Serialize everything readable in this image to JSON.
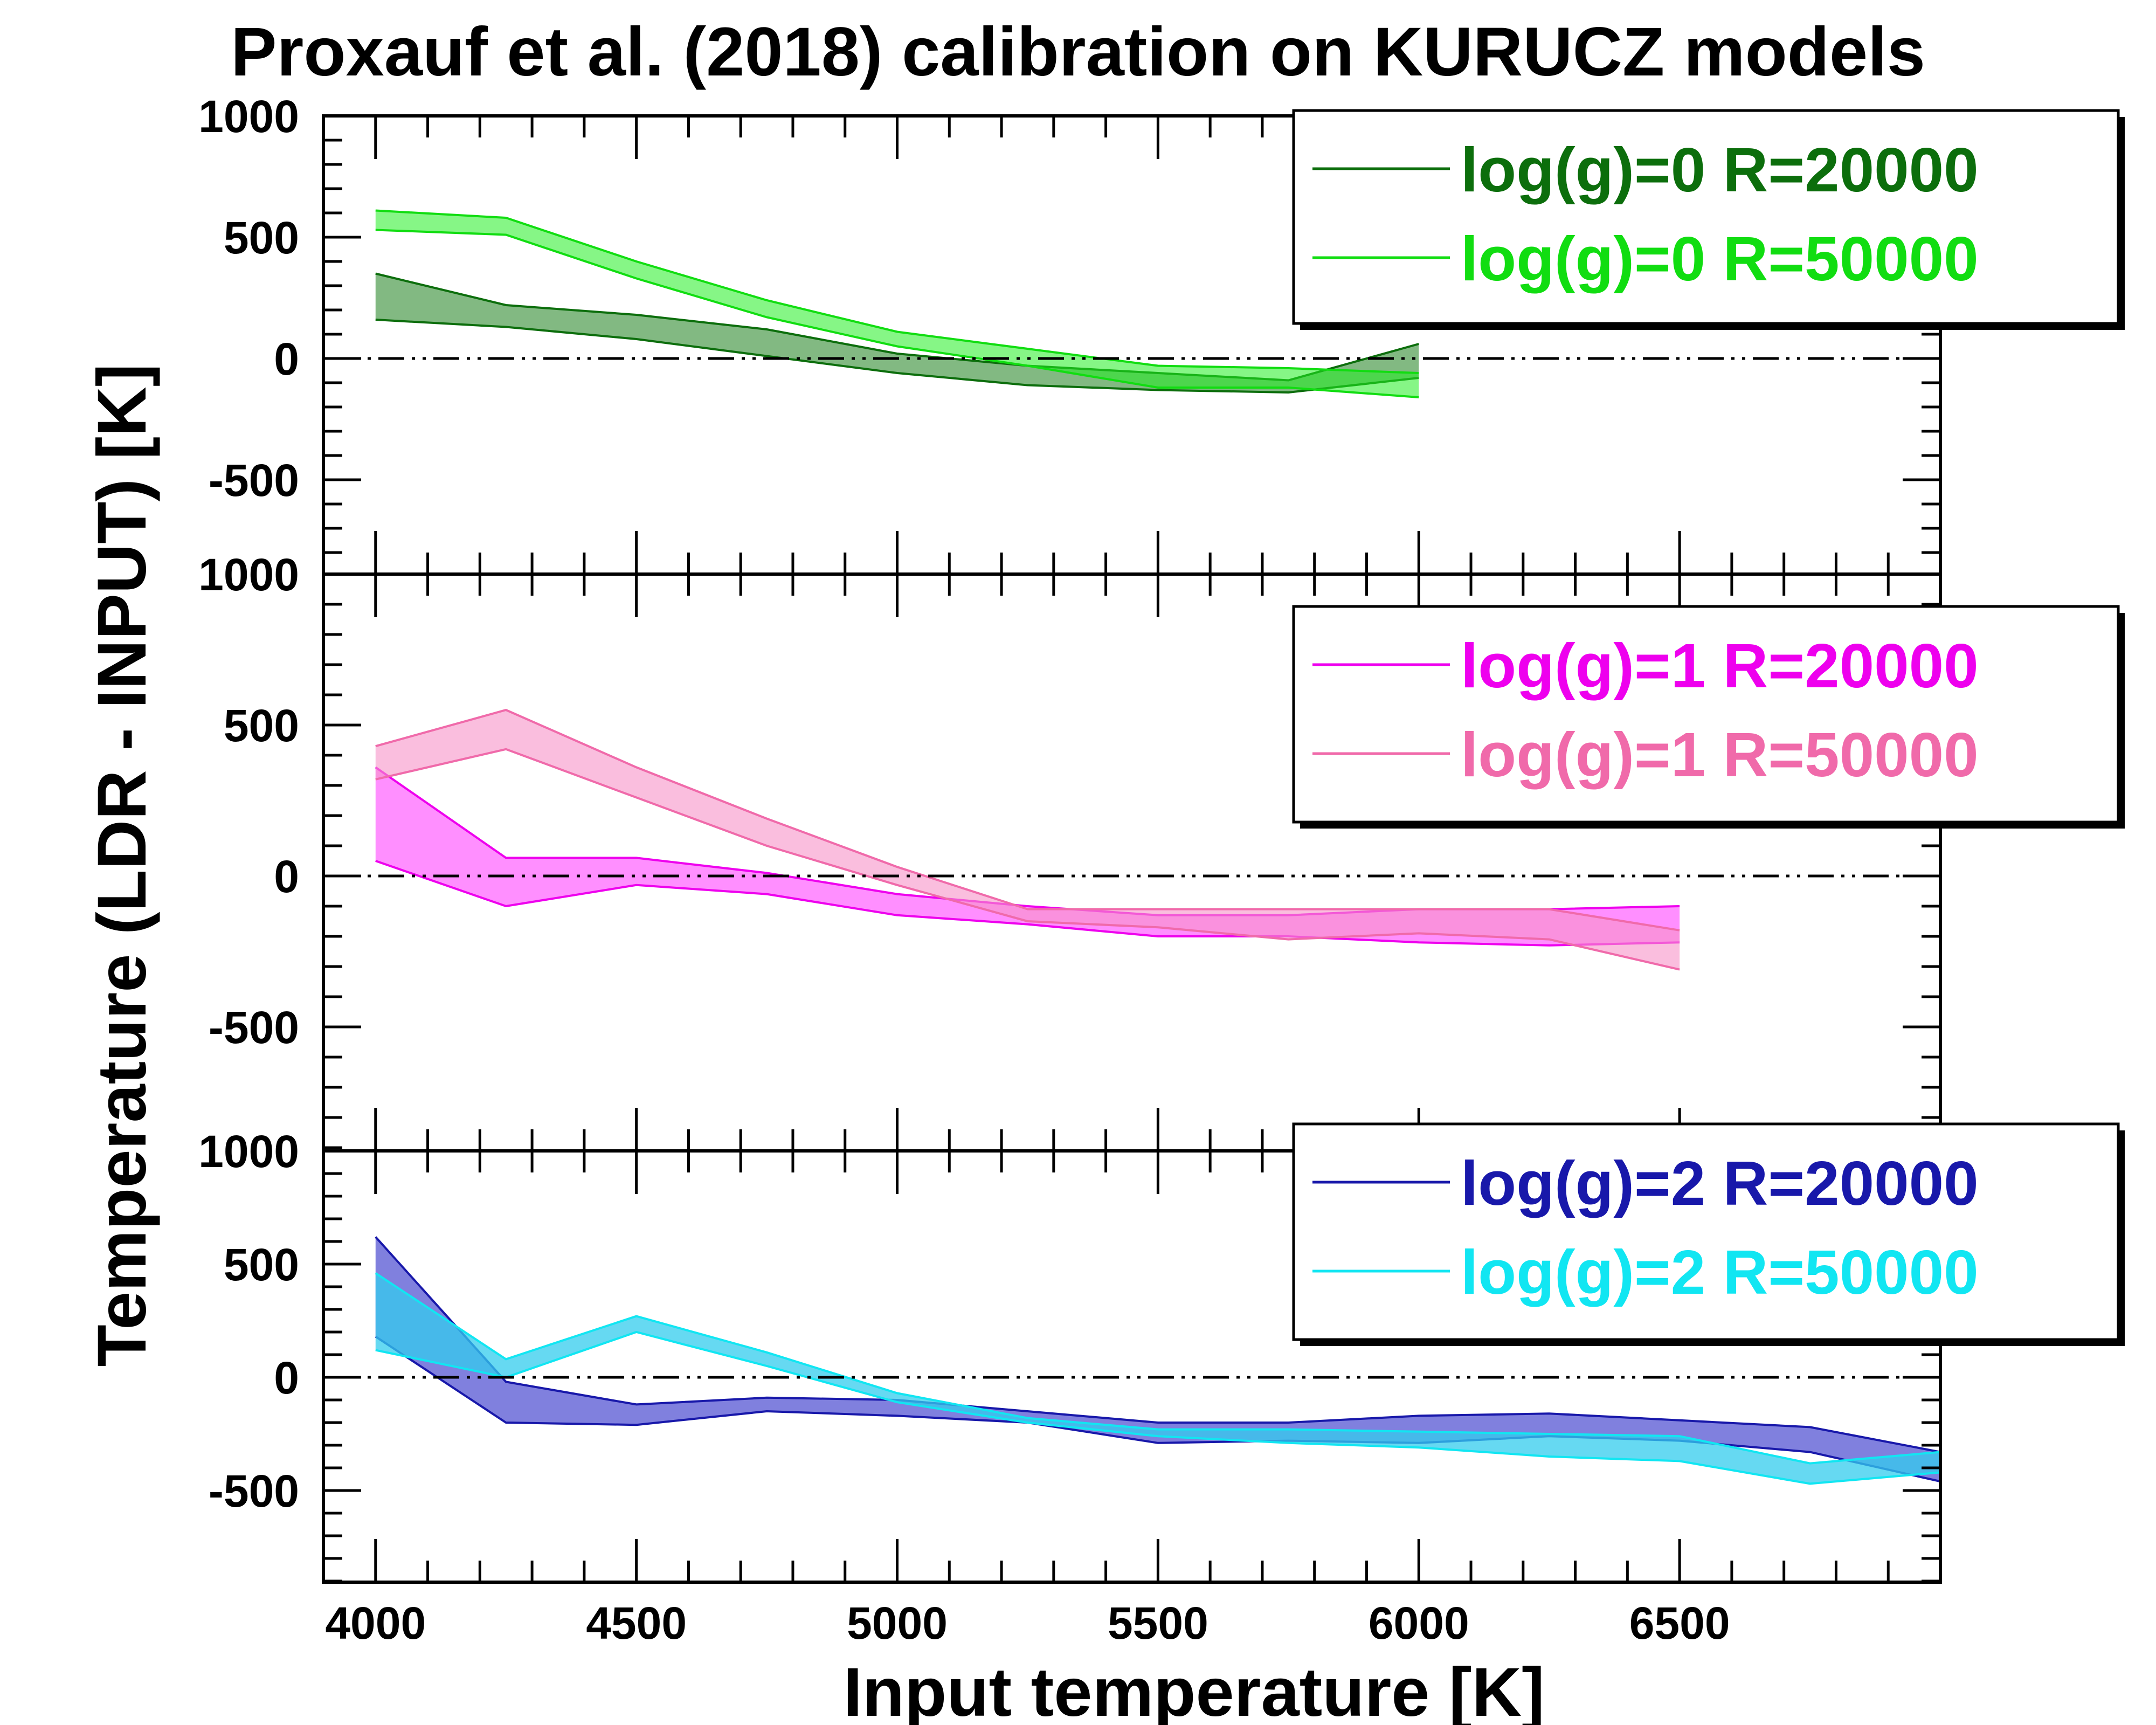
{
  "chart_data": {
    "type": "area",
    "title": "Proxauf et al. (2018) calibration on KURUCZ models",
    "xlabel": "Input temperature [K]",
    "ylabel": "Temperature (LDR - INPUT) [K]",
    "xlim": [
      3900,
      7000
    ],
    "x_ticks": [
      4000,
      4500,
      5000,
      5500,
      6000,
      6500
    ],
    "x_tick_labels": [
      "4000",
      "4500",
      "5000",
      "5500",
      "6000",
      "6500"
    ],
    "zero_line": "dash-dot",
    "panels": [
      {
        "id": "logg0",
        "ylim": [
          -900,
          1000
        ],
        "y_ticks": [
          1000,
          500,
          0,
          -500
        ],
        "y_tick_labels": [
          "1000",
          "500",
          "0",
          "-500"
        ],
        "legend": "top-right",
        "series": [
          {
            "name": "log(g)=0 R=20000",
            "line_color": "#0c6e0c",
            "fill_color": "#2e8a2e",
            "fill_opacity": 0.6,
            "x": [
              4000,
              4250,
              4500,
              4750,
              5000,
              5250,
              5500,
              5750,
              6000
            ],
            "upper": [
              350,
              220,
              180,
              120,
              20,
              -30,
              -60,
              -90,
              60
            ],
            "lower": [
              160,
              130,
              80,
              10,
              -60,
              -110,
              -130,
              -140,
              -80
            ]
          },
          {
            "name": "log(g)=0 R=50000",
            "line_color": "#11dd11",
            "fill_color": "#22ee22",
            "fill_opacity": 0.55,
            "x": [
              4000,
              4250,
              4500,
              4750,
              5000,
              5250,
              5500,
              5750,
              6000
            ],
            "upper": [
              610,
              580,
              400,
              240,
              110,
              40,
              -30,
              -40,
              -60
            ],
            "lower": [
              530,
              510,
              330,
              170,
              50,
              -30,
              -120,
              -120,
              -160
            ]
          }
        ]
      },
      {
        "id": "logg1",
        "ylim": [
          -900,
          1000
        ],
        "y_ticks": [
          1000,
          500,
          0,
          -500
        ],
        "y_tick_labels": [
          "1000",
          "500",
          "0",
          "-500"
        ],
        "legend": "top-right",
        "series": [
          {
            "name": "log(g)=1 R=20000",
            "line_color": "#ee00ee",
            "fill_color": "#ff33ff",
            "fill_opacity": 0.55,
            "x": [
              4000,
              4250,
              4500,
              4750,
              5000,
              5250,
              5500,
              5750,
              6000,
              6250,
              6500
            ],
            "upper": [
              360,
              60,
              60,
              10,
              -60,
              -100,
              -130,
              -130,
              -110,
              -110,
              -100
            ],
            "lower": [
              50,
              -100,
              -30,
              -60,
              -130,
              -160,
              -200,
              -200,
              -220,
              -230,
              -220
            ]
          },
          {
            "name": "log(g)=1 R=50000",
            "line_color": "#f06aaa",
            "fill_color": "#f792c8",
            "fill_opacity": 0.6,
            "x": [
              4000,
              4250,
              4500,
              4750,
              5000,
              5250,
              5500,
              5750,
              6000,
              6250,
              6500
            ],
            "upper": [
              430,
              550,
              360,
              190,
              30,
              -110,
              -110,
              -110,
              -110,
              -110,
              -180
            ],
            "lower": [
              320,
              420,
              260,
              100,
              -30,
              -150,
              -170,
              -210,
              -190,
              -210,
              -310
            ]
          }
        ]
      },
      {
        "id": "logg2",
        "ylim": [
          -900,
          1000
        ],
        "y_ticks": [
          1000,
          500,
          0,
          -500
        ],
        "y_tick_labels": [
          "1000",
          "500",
          "0",
          "-500"
        ],
        "legend": "top-right",
        "series": [
          {
            "name": "log(g)=2 R=20000",
            "line_color": "#1818aa",
            "fill_color": "#4a4ad0",
            "fill_opacity": 0.7,
            "x": [
              4000,
              4250,
              4500,
              4750,
              5000,
              5250,
              5500,
              5750,
              6000,
              6250,
              6500,
              6750,
              7000
            ],
            "upper": [
              620,
              -20,
              -120,
              -90,
              -100,
              -150,
              -200,
              -200,
              -170,
              -160,
              -190,
              -220,
              -330
            ],
            "lower": [
              180,
              -200,
              -210,
              -150,
              -170,
              -200,
              -290,
              -280,
              -290,
              -260,
              -280,
              -330,
              -460
            ]
          },
          {
            "name": "log(g)=2 R=50000",
            "line_color": "#11e6f2",
            "fill_color": "#33ccee",
            "fill_opacity": 0.75,
            "x": [
              4000,
              4250,
              4500,
              4750,
              5000,
              5250,
              5500,
              5750,
              6000,
              6250,
              6500,
              6750,
              7000
            ],
            "upper": [
              460,
              80,
              270,
              110,
              -70,
              -180,
              -230,
              -230,
              -240,
              -250,
              -260,
              -380,
              -330
            ],
            "lower": [
              120,
              0,
              200,
              50,
              -110,
              -200,
              -260,
              -290,
              -310,
              -350,
              -370,
              -470,
              -420
            ]
          }
        ]
      }
    ]
  }
}
